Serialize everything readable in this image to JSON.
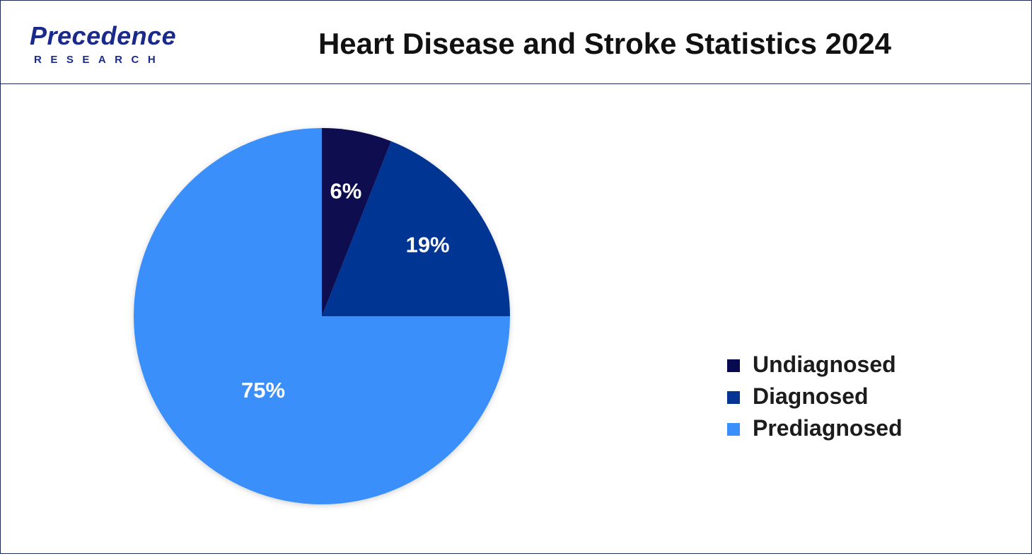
{
  "header": {
    "logo_main": "Precedence",
    "logo_sub": "RESEARCH",
    "title": "Heart Disease and Stroke Statistics 2024"
  },
  "colors": {
    "undiagnosed": "#080a4f",
    "diagnosed": "#053593",
    "prediagnosed": "#3a8ffb",
    "brand": "#1a2a8c"
  },
  "chart_data": {
    "type": "pie",
    "title": "Heart Disease and Stroke Statistics 2024",
    "legend_position": "right",
    "categories": [
      "Undiagnosed",
      "Diagnosed",
      "Prediagnosed"
    ],
    "values": [
      6,
      19,
      75
    ],
    "labels": [
      "6%",
      "19%",
      "75%"
    ],
    "colors": [
      "#080a4f",
      "#053593",
      "#3a8ffb"
    ]
  }
}
